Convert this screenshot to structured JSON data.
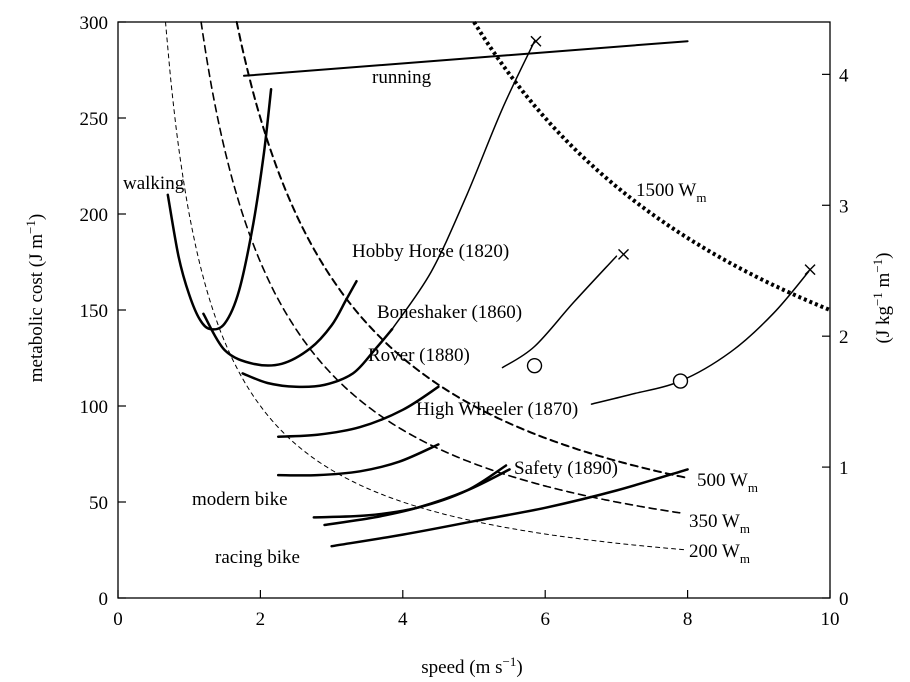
{
  "chart_data": {
    "type": "line",
    "xlabel": "speed (m s⁻¹)",
    "ylabel": "metabolic cost (J m⁻¹)",
    "y2label": "(J kg⁻¹ m⁻¹)",
    "xlim": [
      0,
      10
    ],
    "ylim": [
      0,
      300
    ],
    "y2lim": [
      0,
      4.4
    ],
    "xticks": [
      "0",
      "2",
      "4",
      "6",
      "8",
      "10"
    ],
    "yticks": [
      "0",
      "50",
      "100",
      "150",
      "200",
      "250",
      "300"
    ],
    "y2ticks": [
      "0",
      "1",
      "2",
      "3",
      "4"
    ],
    "grid": false,
    "legend": "none",
    "series": [
      {
        "name": "running",
        "style": "solid",
        "width": 2,
        "x": [
          1.77,
          8.0
        ],
        "y": [
          272,
          290
        ]
      },
      {
        "name": "walking",
        "style": "solid",
        "width": 2.5,
        "x": [
          0.7,
          0.85,
          1.0,
          1.15,
          1.3,
          1.5,
          1.7,
          1.9,
          2.05,
          2.15
        ],
        "y": [
          210,
          178,
          158,
          145,
          140,
          143,
          160,
          195,
          232,
          265
        ]
      },
      {
        "name": "Hobby Horse (1820)",
        "style": "solid",
        "width": 2.5,
        "x": [
          1.2,
          1.5,
          1.9,
          2.3,
          2.7,
          3.0,
          3.2,
          3.35
        ],
        "y": [
          148,
          129,
          122,
          122,
          130,
          142,
          155,
          165
        ]
      },
      {
        "name": "Boneshaker (1860)",
        "style": "solid",
        "width": 2.5,
        "x": [
          1.75,
          2.1,
          2.5,
          2.9,
          3.3,
          3.6,
          3.85
        ],
        "y": [
          117,
          112,
          110,
          111,
          117,
          129,
          140
        ]
      },
      {
        "name": "Boneshaker (1860) extension",
        "style": "solid",
        "width": 1.5,
        "x": [
          3.85,
          4.4,
          4.9,
          5.4,
          5.85
        ],
        "y": [
          140,
          170,
          210,
          255,
          290
        ]
      },
      {
        "name": "Rover (1880)",
        "style": "solid",
        "width": 2.5,
        "x": [
          2.25,
          2.8,
          3.4,
          4.0,
          4.5
        ],
        "y": [
          84,
          85,
          89,
          98,
          110
        ]
      },
      {
        "name": "Rover (1880) extension",
        "style": "solid",
        "width": 1.5,
        "x": [
          5.4,
          5.85,
          6.4,
          7.0
        ],
        "y": [
          120,
          131,
          154,
          178
        ]
      },
      {
        "name": "High Wheeler (1870)",
        "style": "solid",
        "width": 2.5,
        "x": [
          2.25,
          2.8,
          3.4,
          3.95,
          4.5
        ],
        "y": [
          64,
          64,
          66,
          71,
          80
        ]
      },
      {
        "name": "High Wheeler (1870) extension",
        "style": "solid",
        "width": 1.5,
        "x": [
          6.65,
          7.2,
          7.9,
          8.6,
          9.2,
          9.7
        ],
        "y": [
          101,
          106,
          113,
          128,
          148,
          170
        ]
      },
      {
        "name": "Safety (1890)",
        "style": "solid",
        "width": 2.5,
        "x": [
          2.75,
          3.5,
          4.2,
          4.9,
          5.45
        ],
        "y": [
          42,
          43,
          47,
          56,
          69
        ]
      },
      {
        "name": "modern bike",
        "style": "solid",
        "width": 2.5,
        "x": [
          2.9,
          3.6,
          4.2,
          4.9,
          5.5
        ],
        "y": [
          38,
          42,
          47,
          56,
          67
        ]
      },
      {
        "name": "racing bike",
        "style": "solid",
        "width": 2.5,
        "x": [
          3.0,
          4.0,
          5.0,
          6.0,
          7.0,
          8.0
        ],
        "y": [
          27,
          33,
          40,
          47,
          56,
          67
        ]
      },
      {
        "name": "200 Wm",
        "style": "dashed-thin",
        "width": 1,
        "power": 200
      },
      {
        "name": "350 Wm",
        "style": "dashed",
        "width": 1.6,
        "power": 350
      },
      {
        "name": "500 Wm",
        "style": "dashed",
        "width": 2,
        "power": 500
      },
      {
        "name": "1500 Wm",
        "style": "dotted-heavy",
        "width": 4,
        "power": 1500
      }
    ],
    "markers": [
      {
        "shape": "x",
        "x": 5.87,
        "y": 290
      },
      {
        "shape": "x",
        "x": 7.1,
        "y": 179
      },
      {
        "shape": "x",
        "x": 9.72,
        "y": 171
      },
      {
        "shape": "circle",
        "x": 5.85,
        "y": 121
      },
      {
        "shape": "circle",
        "x": 7.9,
        "y": 113
      }
    ],
    "annotations": {
      "running": "running",
      "walking": "walking",
      "hobby_horse": "Hobby Horse (1820)",
      "boneshaker": "Boneshaker (1860)",
      "rover": "Rover (1880)",
      "high_wheeler": "High Wheeler (1870)",
      "safety": "Safety (1890)",
      "modern_bike": "modern bike",
      "racing_bike": "racing bike",
      "power_1500": "1500 W",
      "power_500": "500 W",
      "power_350": "350 W",
      "power_200": "200 W",
      "power_subscript": "m"
    }
  }
}
